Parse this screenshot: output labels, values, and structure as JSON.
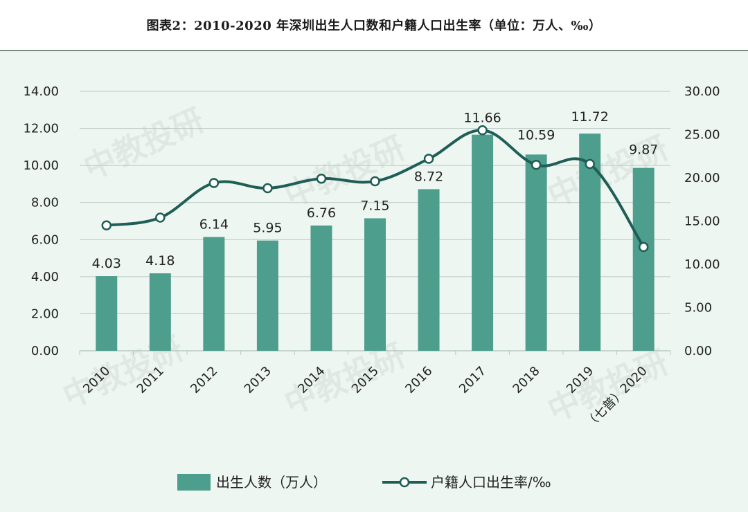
{
  "title": "图表2：2010-2020 年深圳出生人口数和户籍人口出生率（单位：万人、‰）",
  "watermark": "中教投研",
  "colors": {
    "bar": "#4d9e8c",
    "line": "#1f5e56",
    "grid": "#b9c9c4",
    "background": "#eef6f1"
  },
  "chart_data": {
    "type": "bar",
    "categories": [
      "2010",
      "2011",
      "2012",
      "2013",
      "2014",
      "2015",
      "2016",
      "2017",
      "2018",
      "2019",
      "2020"
    ],
    "category_note": {
      "index": 10,
      "text": "（七普）"
    },
    "series": [
      {
        "name": "出生人数（万人）",
        "type": "bar",
        "axis": "left",
        "values": [
          4.03,
          4.18,
          6.14,
          5.95,
          6.76,
          7.15,
          8.72,
          11.66,
          10.59,
          11.72,
          9.87
        ],
        "labels": [
          "4.03",
          "4.18",
          "6.14",
          "5.95",
          "6.76",
          "7.15",
          "8.72",
          "11.66",
          "10.59",
          "11.72",
          "9.87"
        ]
      },
      {
        "name": "户籍人口出生率/‰",
        "type": "line",
        "axis": "right",
        "smooth": true,
        "marker": "circle",
        "values": [
          14.5,
          15.4,
          19.4,
          18.8,
          19.9,
          19.6,
          22.2,
          25.5,
          21.5,
          21.6,
          12.0
        ]
      }
    ],
    "y_left": {
      "ylim": [
        0,
        14
      ],
      "ticks": [
        "0.00",
        "2.00",
        "4.00",
        "6.00",
        "8.00",
        "10.00",
        "12.00",
        "14.00"
      ]
    },
    "y_right": {
      "ylim": [
        0,
        30
      ],
      "ticks": [
        "0.00",
        "5.00",
        "10.00",
        "15.00",
        "20.00",
        "25.00",
        "30.00"
      ]
    },
    "grid": true,
    "legend_position": "bottom"
  }
}
